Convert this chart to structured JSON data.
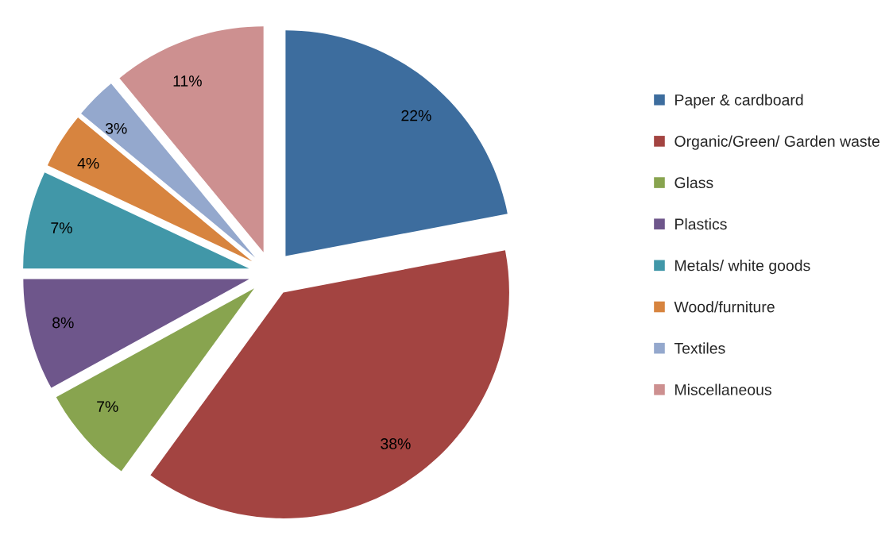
{
  "chart_data": {
    "type": "pie",
    "categories": [
      "Paper & cardboard",
      "Organic/Green/ Garden waste",
      "Glass",
      "Plastics",
      "Metals/ white goods",
      "Wood/furniture",
      "Textiles",
      "Miscellaneous"
    ],
    "values": [
      22,
      38,
      7,
      8,
      7,
      4,
      3,
      11
    ],
    "value_labels": [
      "22%",
      "38%",
      "7%",
      "8%",
      "7%",
      "4%",
      "3%",
      "11%"
    ],
    "colors": [
      "#3d6d9e",
      "#a34441",
      "#88a44f",
      "#6e568b",
      "#4197a8",
      "#d7843f",
      "#94a8cd",
      "#cd9090"
    ],
    "legend": "right"
  }
}
